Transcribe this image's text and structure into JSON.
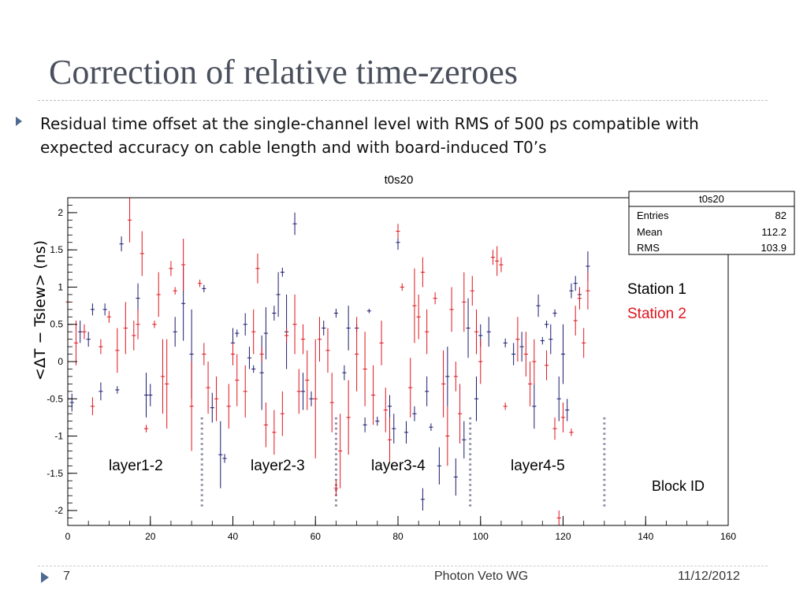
{
  "slide": {
    "title": "Correction of relative time-zeroes",
    "bullet": "Residual time offset at the single-channel level with RMS of 500 ps compatible with expected accuracy on cable length and with board-induced T0’s"
  },
  "footer": {
    "page": "7",
    "group": "Photon Veto WG",
    "date": "11/12/2012"
  },
  "colors": {
    "station1": "#1a1a6e",
    "station2": "#e0141e",
    "separator": "#8c8ca8",
    "accent": "#4f6a92"
  },
  "chart_data": {
    "type": "scatter",
    "title": "t0s20",
    "ylabel": "<ΔT − Tslew> (ns)",
    "xlabel": "Block ID",
    "xlim": [
      0,
      160
    ],
    "ylim": [
      -2.2,
      2.2
    ],
    "x_ticks": [
      "0",
      "20",
      "40",
      "60",
      "80",
      "100",
      "120",
      "140",
      "160"
    ],
    "y_ticks": [
      "2",
      "1.5",
      "1",
      "0.5",
      "0",
      "-0.5",
      "-1",
      "-1.5",
      "-2"
    ],
    "grid": false,
    "stats_box": {
      "title": "t0s20",
      "rows": [
        {
          "label": "Entries",
          "value": "82"
        },
        {
          "label": "Mean",
          "value": "112.2"
        },
        {
          "label": "RMS",
          "value": "103.9"
        }
      ]
    },
    "legend": [
      "Station 1",
      "Station 2"
    ],
    "layer_separators": [
      32.5,
      65,
      97.5,
      130
    ],
    "layer_labels": [
      {
        "text": "layer1-2",
        "x": 17
      },
      {
        "text": "layer2-3",
        "x": 52
      },
      {
        "text": "layer3-4",
        "x": 81
      },
      {
        "text": "layer4-5",
        "x": 115
      }
    ],
    "series": [
      {
        "name": "Station 1",
        "points": [
          [
            1,
            -0.55,
            0.12
          ],
          [
            3,
            0.4,
            0.15
          ],
          [
            5,
            0.3,
            0.1
          ],
          [
            6,
            0.7,
            0.08
          ],
          [
            8,
            -0.4,
            0.12
          ],
          [
            9,
            0.7,
            0.08
          ],
          [
            12,
            -0.38,
            0.05
          ],
          [
            13,
            1.58,
            0.1
          ],
          [
            17,
            0.85,
            0.2
          ],
          [
            19,
            -0.45,
            0.3
          ],
          [
            20,
            -0.45,
            0.15
          ],
          [
            26,
            0.4,
            0.2
          ],
          [
            28,
            0.78,
            0.5
          ],
          [
            30,
            0.1,
            0.6
          ],
          [
            33,
            0.98,
            0.05
          ],
          [
            35,
            -0.62,
            0.2
          ],
          [
            37,
            -1.25,
            0.45
          ],
          [
            38,
            -1.3,
            0.06
          ],
          [
            40,
            0.25,
            0.2
          ],
          [
            41,
            0.38,
            0.05
          ],
          [
            43,
            0.5,
            0.15
          ],
          [
            44,
            0.05,
            0.15
          ],
          [
            45,
            -0.1,
            0.05
          ],
          [
            47,
            -0.15,
            0.5
          ],
          [
            48,
            0.38,
            0.35
          ],
          [
            50,
            0.65,
            0.1
          ],
          [
            51,
            0.9,
            0.3
          ],
          [
            52,
            1.2,
            0.06
          ],
          [
            53,
            0.4,
            0.5
          ],
          [
            55,
            1.85,
            0.15
          ],
          [
            57,
            -0.4,
            0.25
          ],
          [
            59,
            -0.5,
            0.1
          ],
          [
            62,
            0.45,
            0.1
          ],
          [
            65,
            0.65,
            0.06
          ],
          [
            67,
            -0.15,
            0.1
          ],
          [
            68,
            0.45,
            0.3
          ],
          [
            70,
            0.45,
            0.05
          ],
          [
            72,
            -0.85,
            0.1
          ],
          [
            73,
            0.68,
            0.03
          ],
          [
            75,
            -0.8,
            0.06
          ],
          [
            78,
            -0.6,
            0.15
          ],
          [
            79,
            -0.9,
            0.2
          ],
          [
            80,
            1.6,
            0.1
          ],
          [
            82,
            -0.95,
            0.15
          ],
          [
            84,
            -0.7,
            0.1
          ],
          [
            86,
            -1.85,
            0.15
          ],
          [
            87,
            -0.4,
            0.2
          ],
          [
            88,
            -0.88,
            0.05
          ],
          [
            90,
            -1.4,
            0.25
          ],
          [
            92,
            -0.2,
            0.4
          ],
          [
            94,
            -1.55,
            0.25
          ],
          [
            96,
            -1.05,
            0.25
          ],
          [
            97,
            0.45,
            0.4
          ],
          [
            99,
            -0.5,
            0.3
          ],
          [
            100,
            0.35,
            0.15
          ],
          [
            102,
            0.4,
            0.2
          ],
          [
            106,
            0.25,
            0.06
          ],
          [
            108,
            0.1,
            0.15
          ],
          [
            110,
            0.2,
            0.2
          ],
          [
            113,
            -0.6,
            0.3
          ],
          [
            114,
            0.75,
            0.15
          ],
          [
            115,
            0.28,
            0.05
          ],
          [
            116,
            0.5,
            0.05
          ],
          [
            117,
            0.3,
            0.2
          ],
          [
            118,
            0.65,
            0.05
          ],
          [
            119,
            -0.5,
            0.3
          ],
          [
            120,
            0.1,
            0.4
          ],
          [
            121,
            -0.65,
            0.15
          ],
          [
            122,
            0.95,
            0.1
          ],
          [
            123,
            1.05,
            0.1
          ],
          [
            124,
            0.9,
            0.1
          ],
          [
            126,
            1.28,
            0.2
          ]
        ]
      },
      {
        "name": "Station 2",
        "points": [
          [
            0,
            0.8,
            0.4
          ],
          [
            2,
            0.25,
            0.3
          ],
          [
            4,
            0.4,
            0.1
          ],
          [
            6,
            -0.6,
            0.12
          ],
          [
            8,
            0.2,
            0.1
          ],
          [
            10,
            0.6,
            0.08
          ],
          [
            12,
            0.15,
            0.3
          ],
          [
            14,
            0.45,
            0.35
          ],
          [
            15,
            1.9,
            0.3
          ],
          [
            16,
            0.35,
            0.2
          ],
          [
            17,
            0.5,
            0.2
          ],
          [
            18,
            1.45,
            0.3
          ],
          [
            19,
            -0.9,
            0.05
          ],
          [
            21,
            0.5,
            0.05
          ],
          [
            22,
            0.9,
            0.3
          ],
          [
            23,
            -0.2,
            0.5
          ],
          [
            24,
            -0.3,
            0.6
          ],
          [
            25,
            1.25,
            0.1
          ],
          [
            26,
            0.95,
            0.05
          ],
          [
            28,
            1.3,
            0.35
          ],
          [
            30,
            -0.6,
            0.6
          ],
          [
            32,
            1.05,
            0.05
          ],
          [
            33,
            0.1,
            0.15
          ],
          [
            34,
            -0.35,
            0.35
          ],
          [
            36,
            -0.5,
            0.3
          ],
          [
            39,
            -0.6,
            0.3
          ],
          [
            40,
            0.1,
            0.15
          ],
          [
            41,
            -0.25,
            0.35
          ],
          [
            43,
            -0.4,
            0.35
          ],
          [
            45,
            0.4,
            0.3
          ],
          [
            46,
            1.25,
            0.2
          ],
          [
            47,
            0.1,
            0.1
          ],
          [
            48,
            -0.85,
            0.3
          ],
          [
            50,
            -0.95,
            0.3
          ],
          [
            52,
            -0.7,
            0.3
          ],
          [
            53,
            0.35,
            0.1
          ],
          [
            55,
            0.5,
            0.4
          ],
          [
            56,
            -0.4,
            0.3
          ],
          [
            57,
            0.3,
            0.2
          ],
          [
            58,
            -0.25,
            0.4
          ],
          [
            60,
            -0.5,
            0.8
          ],
          [
            61,
            0.3,
            0.3
          ],
          [
            63,
            0.15,
            0.3
          ],
          [
            64,
            -0.55,
            0.4
          ],
          [
            65,
            -1.7,
            0.1
          ],
          [
            66,
            -1.2,
            0.5
          ],
          [
            68,
            -0.75,
            0.5
          ],
          [
            70,
            0.1,
            0.5
          ],
          [
            72,
            -0.1,
            0.5
          ],
          [
            74,
            -0.45,
            0.4
          ],
          [
            76,
            0.25,
            0.3
          ],
          [
            77,
            -0.65,
            0.3
          ],
          [
            78,
            -1.05,
            0.3
          ],
          [
            80,
            1.75,
            0.1
          ],
          [
            81,
            1.0,
            0.05
          ],
          [
            83,
            -0.35,
            0.4
          ],
          [
            84,
            0.75,
            0.5
          ],
          [
            85,
            0.6,
            0.3
          ],
          [
            86,
            1.2,
            0.2
          ],
          [
            87,
            0.4,
            0.3
          ],
          [
            89,
            0.85,
            0.08
          ],
          [
            91,
            -0.3,
            0.45
          ],
          [
            92,
            -1.0,
            0.4
          ],
          [
            93,
            0.7,
            0.3
          ],
          [
            94,
            -0.2,
            0.2
          ],
          [
            95,
            -0.7,
            0.4
          ],
          [
            96,
            0.8,
            0.4
          ],
          [
            98,
            0.95,
            0.2
          ],
          [
            99,
            0.4,
            0.3
          ],
          [
            100,
            0.0,
            0.3
          ],
          [
            103,
            1.4,
            0.1
          ],
          [
            104,
            1.35,
            0.2
          ],
          [
            105,
            1.3,
            0.1
          ],
          [
            106,
            -0.6,
            0.05
          ],
          [
            109,
            0.3,
            0.3
          ],
          [
            111,
            0.1,
            0.3
          ],
          [
            112,
            -0.3,
            0.3
          ],
          [
            113,
            0.0,
            0.3
          ],
          [
            116,
            -0.05,
            0.2
          ],
          [
            118,
            -0.9,
            0.15
          ],
          [
            119,
            -2.1,
            0.1
          ],
          [
            120,
            -0.75,
            0.2
          ],
          [
            122,
            -0.95,
            0.05
          ],
          [
            123,
            0.55,
            0.2
          ],
          [
            124,
            0.85,
            0.15
          ],
          [
            125,
            0.25,
            0.2
          ],
          [
            126,
            0.95,
            0.25
          ]
        ]
      }
    ]
  }
}
